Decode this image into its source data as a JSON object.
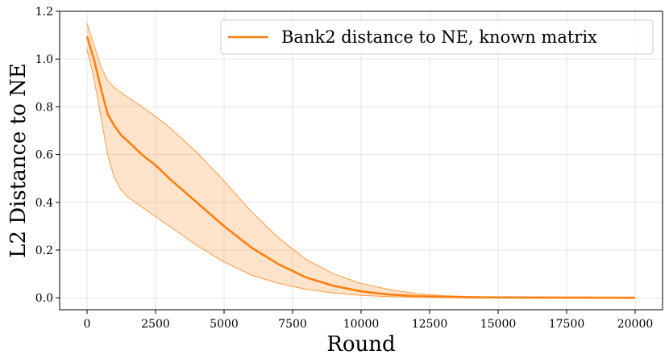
{
  "chart_data": {
    "type": "line",
    "title": "",
    "xlabel": "Round",
    "ylabel": "L2 Distance to NE",
    "xlim": [
      -1000,
      21000
    ],
    "ylim": [
      -0.05,
      1.2
    ],
    "xticks": [
      0,
      2500,
      5000,
      7500,
      10000,
      12500,
      15000,
      17500,
      20000
    ],
    "yticks": [
      0.0,
      0.2,
      0.4,
      0.6,
      0.8,
      1.0,
      1.2
    ],
    "xtick_labels": [
      "0",
      "2500",
      "5000",
      "7500",
      "10000",
      "12500",
      "15000",
      "17500",
      "20000"
    ],
    "ytick_labels": [
      "0.0",
      "0.2",
      "0.4",
      "0.6",
      "0.8",
      "1.0",
      "1.2"
    ],
    "grid": true,
    "legend_position": "top-right",
    "series": [
      {
        "name": "Bank2 distance to NE, known matrix",
        "color": "#ff7f0e",
        "x": [
          0,
          250,
          500,
          750,
          1000,
          1250,
          1500,
          2000,
          2500,
          3000,
          4000,
          5000,
          6000,
          7000,
          8000,
          9000,
          10000,
          11000,
          12000,
          13000,
          14000,
          15000,
          17500,
          20000
        ],
        "y": [
          1.095,
          1.0,
          0.88,
          0.77,
          0.72,
          0.68,
          0.655,
          0.6,
          0.555,
          0.5,
          0.4,
          0.3,
          0.21,
          0.14,
          0.085,
          0.05,
          0.027,
          0.014,
          0.007,
          0.004,
          0.002,
          0.0015,
          0.001,
          0.0
        ],
        "upper": [
          1.15,
          1.06,
          0.97,
          0.91,
          0.88,
          0.86,
          0.84,
          0.8,
          0.76,
          0.715,
          0.61,
          0.49,
          0.36,
          0.25,
          0.16,
          0.1,
          0.06,
          0.035,
          0.018,
          0.009,
          0.005,
          0.003,
          0.0015,
          0.0
        ],
        "lower": [
          1.04,
          0.92,
          0.76,
          0.6,
          0.5,
          0.45,
          0.42,
          0.38,
          0.34,
          0.3,
          0.22,
          0.15,
          0.095,
          0.06,
          0.035,
          0.02,
          0.01,
          0.005,
          0.003,
          0.002,
          0.001,
          0.0005,
          0.0,
          0.0
        ]
      }
    ]
  }
}
